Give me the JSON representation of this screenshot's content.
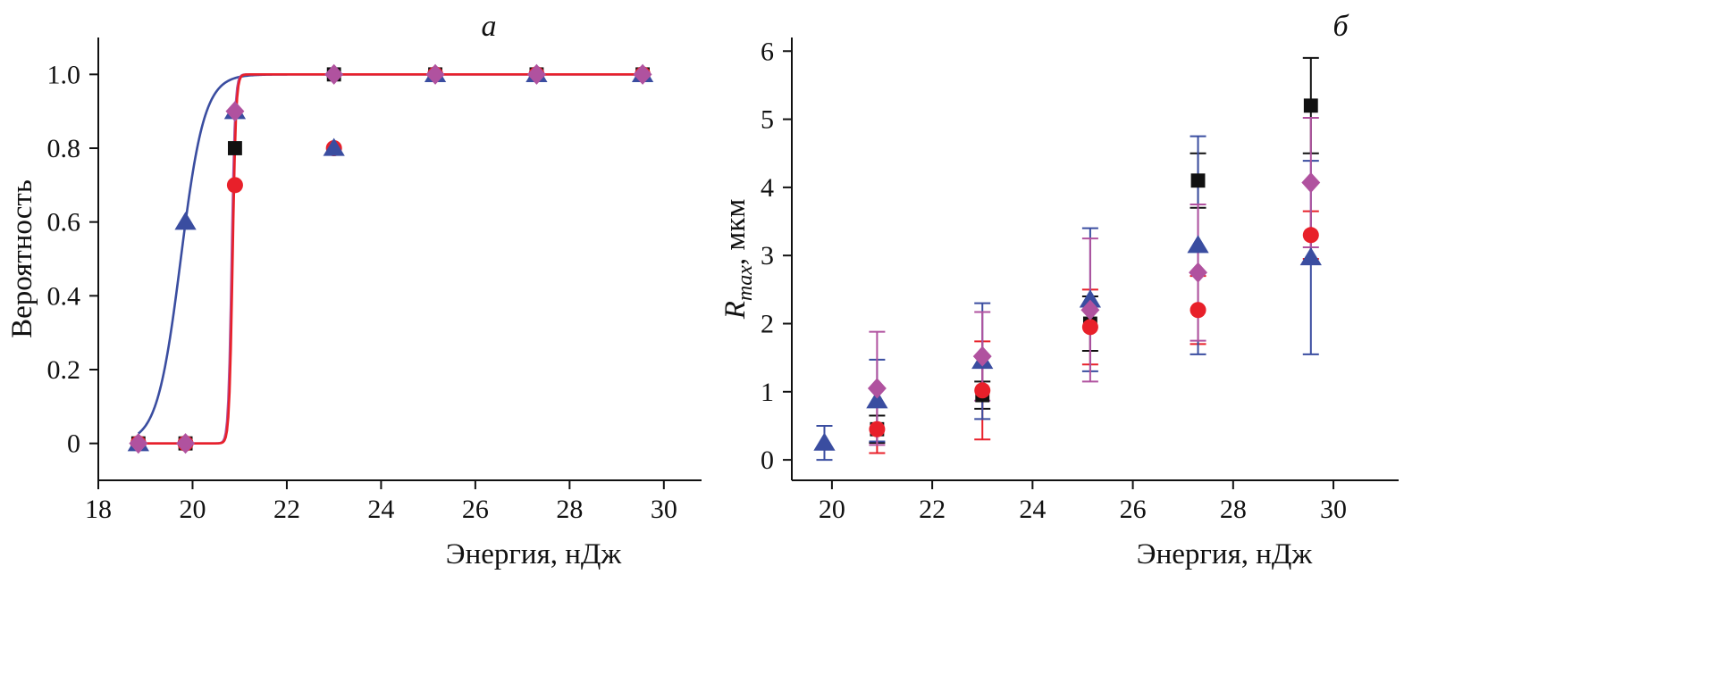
{
  "chart_data": [
    {
      "panel": "a",
      "type": "scatter",
      "xlabel": "Энергия, нДж",
      "ylabel": "Вероятность",
      "xlim": [
        18,
        30.8
      ],
      "ylim": [
        -0.1,
        1.1
      ],
      "xticks": [
        18,
        20,
        22,
        24,
        26,
        28,
        30
      ],
      "yticks": [
        0,
        0.2,
        0.4,
        0.6,
        0.8,
        1.0
      ],
      "ytick_labels": [
        "0",
        "0.2",
        "0.4",
        "0.6",
        "0.8",
        "1.0"
      ],
      "grid": false,
      "series": [
        {
          "marker": "square",
          "color": "#111111",
          "points": [
            [
              18.85,
              0
            ],
            [
              19.85,
              0
            ],
            [
              20.9,
              0.8
            ],
            [
              23.0,
              1.0
            ],
            [
              25.15,
              1.0
            ],
            [
              27.3,
              1.0
            ],
            [
              29.55,
              1.0
            ]
          ]
        },
        {
          "marker": "circle",
          "color": "#e8202a",
          "points": [
            [
              18.85,
              0
            ],
            [
              19.85,
              0
            ],
            [
              20.9,
              0.7
            ],
            [
              23.0,
              0.8
            ],
            [
              25.15,
              1.0
            ],
            [
              27.3,
              1.0
            ],
            [
              29.55,
              1.0
            ]
          ]
        },
        {
          "marker": "triangle",
          "color": "#3a4da0",
          "points": [
            [
              18.85,
              0
            ],
            [
              19.85,
              0.6
            ],
            [
              20.9,
              0.9
            ],
            [
              23.0,
              0.8
            ],
            [
              25.15,
              1.0
            ],
            [
              27.3,
              1.0
            ],
            [
              29.55,
              1.0
            ]
          ]
        },
        {
          "marker": "diamond",
          "color": "#b0529f",
          "points": [
            [
              18.85,
              0
            ],
            [
              19.85,
              0
            ],
            [
              20.9,
              0.9
            ],
            [
              23.0,
              1.0
            ],
            [
              25.15,
              1.0
            ],
            [
              27.3,
              1.0
            ],
            [
              29.55,
              1.0
            ]
          ]
        }
      ],
      "fits": [
        {
          "color": "#3a4da0",
          "x50": 19.75,
          "k": 4.0,
          "x_range": [
            18.85,
            29.6
          ]
        },
        {
          "color": "#b0529f",
          "x50": 20.83,
          "k": 28,
          "x_range": [
            18.85,
            29.6
          ]
        },
        {
          "color": "#e8202a",
          "x50": 20.85,
          "k": 28,
          "x_range": [
            18.85,
            29.6
          ]
        }
      ]
    },
    {
      "panel": "б",
      "type": "scatter",
      "xlabel": "Энергия, нДж",
      "ylabel_main": "R",
      "ylabel_sub": "max",
      "ylabel_unit": ", мкм",
      "xlim": [
        19.2,
        31.3
      ],
      "ylim": [
        -0.3,
        6.2
      ],
      "xticks": [
        20,
        22,
        24,
        26,
        28,
        30
      ],
      "yticks": [
        0,
        1,
        2,
        3,
        4,
        5,
        6
      ],
      "grid": false,
      "series": [
        {
          "marker": "square",
          "color": "#111111",
          "points": [
            [
              20.9,
              0.45,
              0.2
            ],
            [
              23.0,
              0.95,
              0.2
            ],
            [
              25.15,
              2.0,
              0.4
            ],
            [
              27.3,
              4.1,
              0.4
            ],
            [
              29.55,
              5.2,
              0.7
            ]
          ]
        },
        {
          "marker": "circle",
          "color": "#e8202a",
          "points": [
            [
              20.9,
              0.45,
              0.35
            ],
            [
              23.0,
              1.02,
              0.72
            ],
            [
              25.15,
              1.95,
              0.55
            ],
            [
              27.3,
              2.2,
              0.5
            ],
            [
              29.55,
              3.3,
              0.35
            ]
          ]
        },
        {
          "marker": "triangle",
          "color": "#3a4da0",
          "points": [
            [
              19.85,
              0.25,
              0.25
            ],
            [
              20.9,
              0.87,
              0.6
            ],
            [
              23.0,
              1.45,
              0.85
            ],
            [
              25.15,
              2.35,
              1.05
            ],
            [
              27.3,
              3.15,
              1.6
            ],
            [
              29.55,
              2.97,
              1.42
            ]
          ]
        },
        {
          "marker": "diamond",
          "color": "#b0529f",
          "points": [
            [
              20.9,
              1.05,
              0.83
            ],
            [
              23.0,
              1.52,
              0.65
            ],
            [
              25.15,
              2.2,
              1.05
            ],
            [
              27.3,
              2.75,
              1.0
            ],
            [
              29.55,
              4.07,
              0.95
            ]
          ]
        }
      ]
    }
  ]
}
